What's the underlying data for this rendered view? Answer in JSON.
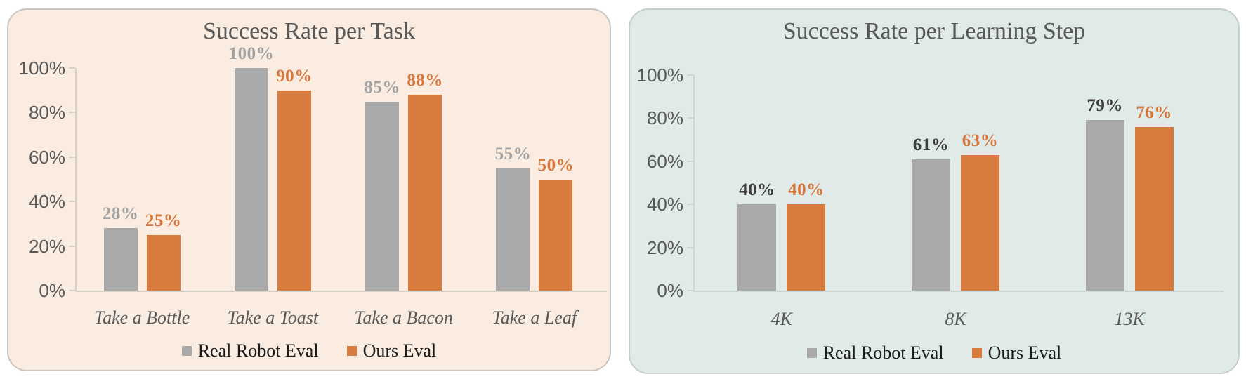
{
  "chart_data": [
    {
      "type": "bar",
      "title": "Success Rate per Task",
      "categories": [
        "Take a Bottle",
        "Take a Toast",
        "Take a Bacon",
        "Take a Leaf"
      ],
      "series": [
        {
          "name": "Real Robot Eval",
          "values": [
            28,
            100,
            85,
            55
          ],
          "display": [
            "28%",
            "100%",
            "85%",
            "55%"
          ],
          "color": "#a9a9a9",
          "label_color": "#a2a2a2"
        },
        {
          "name": "Ours Eval",
          "values": [
            25,
            90,
            88,
            50
          ],
          "display": [
            "25%",
            "90%",
            "88%",
            "50%"
          ],
          "color": "#d87b3e",
          "label_color": "#d8763a"
        }
      ],
      "y_tick_labels": [
        "0%",
        "20%",
        "40%",
        "60%",
        "80%",
        "100%"
      ],
      "y_tick_values": [
        0,
        20,
        40,
        60,
        80,
        100
      ],
      "ylim": [
        0,
        100
      ],
      "grid": false,
      "legend_position": "bottom",
      "panel_background": "#fbece1",
      "axis_color": "#d8d1c8",
      "title_color": "#595959",
      "tick_label_color": "#595959",
      "category_label_color": "#595959"
    },
    {
      "type": "bar",
      "title": "Success Rate per Learning Step",
      "categories": [
        "4K",
        "8K",
        "13K"
      ],
      "series": [
        {
          "name": "Real Robot Eval",
          "values": [
            40,
            61,
            79
          ],
          "display": [
            "40%",
            "61%",
            "79%"
          ],
          "color": "#a9a9a9",
          "label_color": "#3d3d3d"
        },
        {
          "name": "Ours Eval",
          "values": [
            40,
            63,
            76
          ],
          "display": [
            "40%",
            "63%",
            "76%"
          ],
          "color": "#d87b3e",
          "label_color": "#d8763a"
        }
      ],
      "y_tick_labels": [
        "0%",
        "20%",
        "40%",
        "60%",
        "80%",
        "100%"
      ],
      "y_tick_values": [
        0,
        20,
        40,
        60,
        80,
        100
      ],
      "ylim": [
        0,
        100
      ],
      "grid": false,
      "legend_position": "bottom",
      "panel_background": "#e0ebe9",
      "axis_color": "#ccd7d4",
      "title_color": "#595959",
      "tick_label_color": "#595959",
      "category_label_color": "#595959"
    }
  ]
}
